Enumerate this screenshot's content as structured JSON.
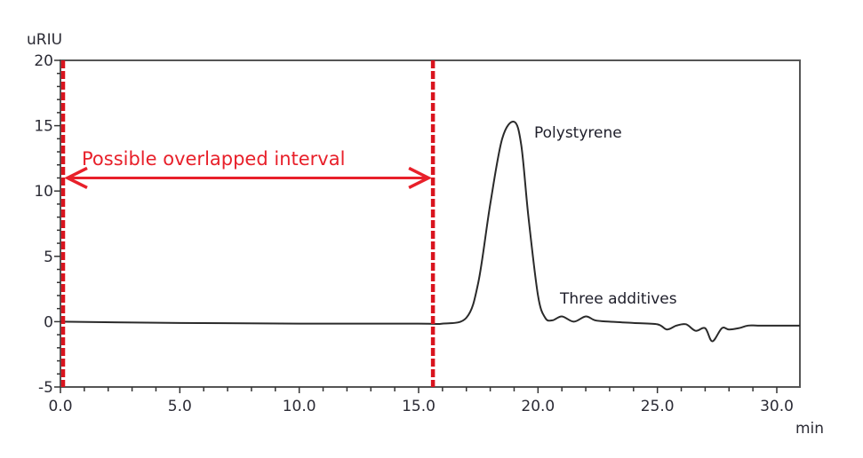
{
  "chart_data": {
    "type": "line",
    "title": "",
    "xlabel": "min",
    "ylabel": "uRIU",
    "xlim": [
      0,
      30
    ],
    "ylim": [
      -5,
      20
    ],
    "x_ticks": [
      "0.0",
      "5.0",
      "10.0",
      "15.0",
      "20.0",
      "25.0",
      "30.0"
    ],
    "y_ticks": [
      "-5",
      "0",
      "5",
      "10",
      "15",
      "20"
    ],
    "grid": false,
    "series": [
      {
        "name": "chromatogram",
        "x": [
          0,
          5,
          10,
          15,
          16,
          17,
          17.5,
          18,
          18.5,
          19,
          19.3,
          19.6,
          20,
          20.3,
          20.6,
          21,
          21.5,
          22,
          22.4,
          23,
          24,
          25,
          25.4,
          25.8,
          26.2,
          26.6,
          27.0,
          27.3,
          27.7,
          28.0,
          28.4,
          28.8,
          29.2,
          30
        ],
        "values": [
          0,
          -0.1,
          -0.15,
          -0.15,
          -0.15,
          0.3,
          3,
          9,
          14,
          15.3,
          13.5,
          8,
          2,
          0.3,
          0.1,
          0.4,
          0,
          0.4,
          0.1,
          0,
          -0.1,
          -0.2,
          -0.6,
          -0.3,
          -0.2,
          -0.7,
          -0.5,
          -1.5,
          -0.5,
          -0.6,
          -0.5,
          -0.3,
          -0.3,
          -0.3
        ]
      }
    ],
    "annotations": [
      {
        "text": "Polystyrene",
        "x": 20.0,
        "y": 14.5
      },
      {
        "text": "Three additives",
        "x": 20.2,
        "y": 1.6
      },
      {
        "text": "Possible overlapped interval",
        "type": "double-arrow",
        "x_start": 0,
        "x_end": 15.6,
        "y": 11
      }
    ],
    "vlines": [
      {
        "x": 0,
        "style": "dashed",
        "color": "#d9141e"
      },
      {
        "x": 15.6,
        "style": "dashed",
        "color": "#d9141e"
      }
    ]
  },
  "labels": {
    "y_unit": "uRIU",
    "x_unit": "min",
    "peak_main": "Polystyrene",
    "peak_minor": "Three additives",
    "interval": "Possible overlapped interval"
  },
  "colors": {
    "trace": "#2a2a2a",
    "interval_red": "#e8202a",
    "frame": "#555555"
  }
}
